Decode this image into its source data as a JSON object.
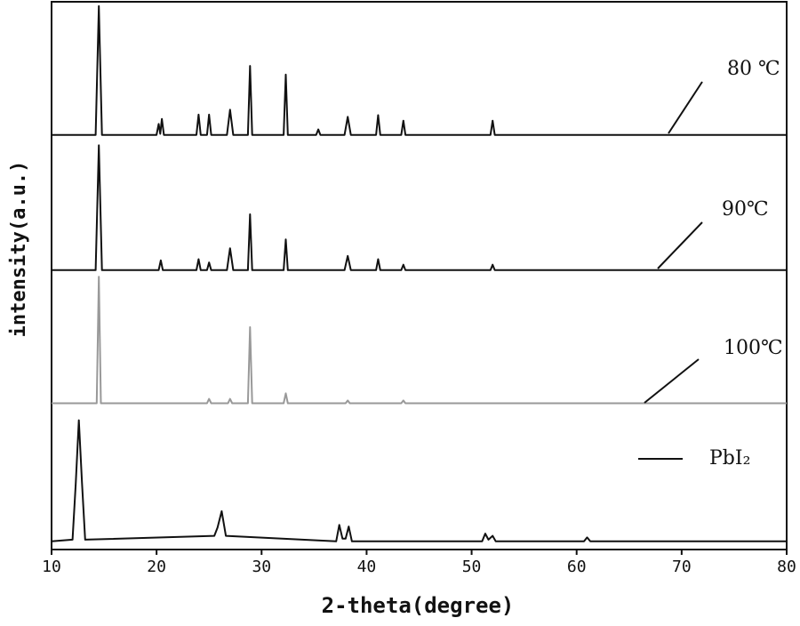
{
  "chart_data": {
    "type": "line",
    "xlabel": "2-theta(degree)",
    "ylabel": "intensity(a.u.)",
    "xlim": [
      10,
      80
    ],
    "xticks": [
      10,
      20,
      30,
      40,
      50,
      60,
      70,
      80
    ],
    "ylim": [
      0,
      100
    ],
    "series": [
      {
        "name": "80 ℃",
        "color": "#111111",
        "x": [
          10,
          14.2,
          14.5,
          14.8,
          20,
          20.2,
          20.35,
          20.5,
          20.7,
          23.8,
          24,
          24.2,
          24.8,
          25,
          25.2,
          26.7,
          27,
          27.3,
          28.7,
          28.9,
          29.1,
          32.1,
          32.3,
          32.5,
          35.2,
          35.4,
          35.6,
          37.9,
          38.2,
          38.5,
          40.9,
          41.1,
          41.3,
          43.3,
          43.5,
          43.7,
          51.8,
          52,
          52.2,
          80
        ],
        "values": [
          75.7,
          75.7,
          99.2,
          75.7,
          75.7,
          77.7,
          75.9,
          78.6,
          75.7,
          75.7,
          79.4,
          75.7,
          75.7,
          79.4,
          75.7,
          75.7,
          80.3,
          75.7,
          75.7,
          88.3,
          75.7,
          75.7,
          86.7,
          75.7,
          75.7,
          76.7,
          75.7,
          75.7,
          79,
          75.7,
          75.7,
          79.3,
          75.7,
          75.7,
          78.3,
          75.7,
          75.7,
          78.3,
          75.7,
          75.7
        ]
      },
      {
        "name": "90℃",
        "color": "#111111",
        "x": [
          10,
          14.2,
          14.5,
          14.8,
          20.2,
          20.4,
          20.6,
          23.8,
          24,
          24.2,
          24.8,
          25,
          25.2,
          26.7,
          27,
          27.3,
          28.7,
          28.9,
          29.1,
          32.1,
          32.3,
          32.5,
          37.9,
          38.2,
          38.5,
          40.9,
          41.1,
          41.3,
          43.3,
          43.5,
          43.7,
          51.8,
          52,
          52.2,
          80
        ],
        "values": [
          51,
          51,
          73.8,
          51,
          51,
          52.8,
          51,
          51,
          53,
          51,
          51,
          52.4,
          51,
          51,
          55,
          51,
          51,
          61.2,
          51,
          51,
          56.6,
          51,
          51,
          53.6,
          51,
          51,
          53,
          51,
          51,
          52,
          51,
          51,
          52,
          51,
          51
        ]
      },
      {
        "name": "100℃",
        "color": "#999999",
        "x": [
          10,
          14.3,
          14.5,
          14.7,
          24.8,
          25,
          25.2,
          26.8,
          27,
          27.2,
          28.7,
          28.9,
          29.1,
          32.1,
          32.3,
          32.5,
          38,
          38.2,
          38.4,
          43.3,
          43.5,
          43.7,
          80
        ],
        "values": [
          26.7,
          26.7,
          49.8,
          26.7,
          26.7,
          27.5,
          26.7,
          26.7,
          27.5,
          26.7,
          26.7,
          40.6,
          26.7,
          26.7,
          28.5,
          26.7,
          26.7,
          27.2,
          26.7,
          26.7,
          27.2,
          26.7,
          26.7
        ]
      },
      {
        "name": "PbI₂",
        "color": "#111111",
        "x": [
          10,
          12,
          12.3,
          12.6,
          12.9,
          13.2,
          25.5,
          25.8,
          26.2,
          26.6,
          37.1,
          37.4,
          37.7,
          38,
          38.3,
          38.6,
          51,
          51.3,
          51.6,
          52,
          52.3,
          60.7,
          61,
          61.3,
          80
        ],
        "values": [
          1.5,
          1.8,
          12,
          23.6,
          12,
          1.8,
          2.5,
          4,
          7,
          2.5,
          1.5,
          4.5,
          2,
          2,
          4.2,
          1.5,
          1.5,
          2.9,
          1.8,
          2.5,
          1.5,
          1.5,
          2.2,
          1.5,
          1.5
        ]
      }
    ]
  }
}
